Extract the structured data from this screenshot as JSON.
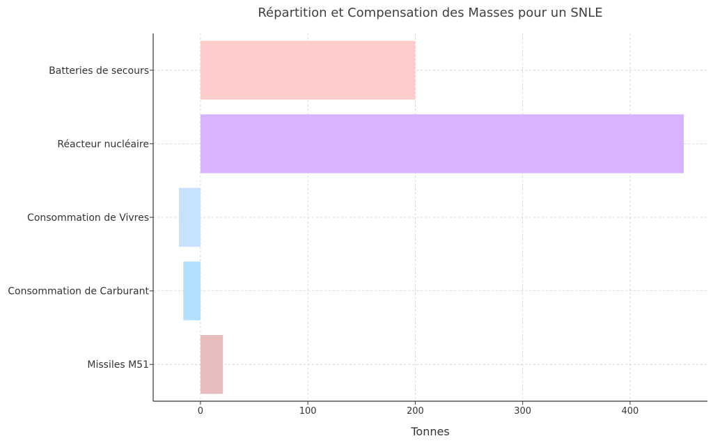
{
  "chart_data": {
    "type": "bar",
    "orientation": "horizontal",
    "title": "Répartition et Compensation des Masses pour un SNLE",
    "xlabel": "Tonnes",
    "ylabel": "",
    "categories": [
      "Batteries de secours",
      "Réacteur nucléaire",
      "Consommation de Vivres",
      "Consommation de Carburant",
      "Missiles M51"
    ],
    "values": [
      200,
      450,
      -20,
      -16,
      21
    ],
    "colors": [
      "#ffcccc",
      "#d8b4fe",
      "#c6e2ff",
      "#b3e0ff",
      "#e8bcbc"
    ],
    "xlim": [
      -44,
      472
    ],
    "xticks": [
      0,
      100,
      200,
      300,
      400
    ],
    "grid": true,
    "legend": "none"
  }
}
